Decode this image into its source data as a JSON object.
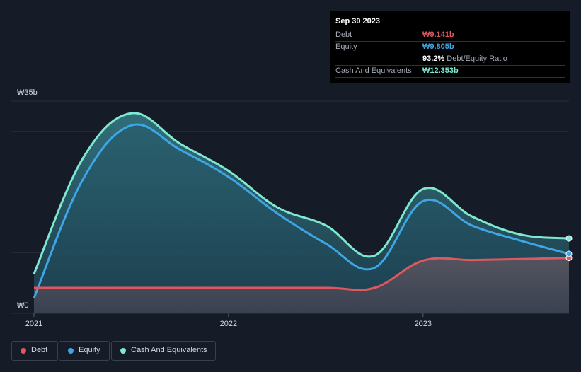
{
  "chart_data": {
    "type": "area",
    "title": "",
    "currency_prefix": "₩",
    "y_unit": "b",
    "ylim": [
      0,
      35
    ],
    "y_tick_labels": [
      {
        "value": 35,
        "label": "₩35b"
      },
      {
        "value": 0,
        "label": "₩0"
      }
    ],
    "gridlines": [
      0,
      10,
      20,
      30,
      35
    ],
    "xlim": [
      2021.0,
      2023.75
    ],
    "x_tick_labels": [
      {
        "value": 2021.0,
        "label": "2021"
      },
      {
        "value": 2022.0,
        "label": "2022"
      },
      {
        "value": 2023.0,
        "label": "2023"
      }
    ],
    "series": [
      {
        "name": "Cash And Equivalents",
        "key": "cash",
        "color": "#7ee8d0",
        "points": [
          [
            2021.0,
            6.5
          ],
          [
            2021.25,
            25.5
          ],
          [
            2021.5,
            33.0
          ],
          [
            2021.75,
            28.0
          ],
          [
            2022.0,
            23.5
          ],
          [
            2022.25,
            17.5
          ],
          [
            2022.5,
            14.5
          ],
          [
            2022.75,
            9.5
          ],
          [
            2023.0,
            20.5
          ],
          [
            2023.25,
            16.0
          ],
          [
            2023.5,
            13.0
          ],
          [
            2023.75,
            12.353
          ]
        ]
      },
      {
        "name": "Equity",
        "key": "equity",
        "color": "#3ea6e6",
        "points": [
          [
            2021.0,
            2.5
          ],
          [
            2021.25,
            22.0
          ],
          [
            2021.5,
            31.0
          ],
          [
            2021.75,
            27.0
          ],
          [
            2022.0,
            22.5
          ],
          [
            2022.25,
            16.5
          ],
          [
            2022.5,
            11.5
          ],
          [
            2022.75,
            7.5
          ],
          [
            2023.0,
            18.5
          ],
          [
            2023.25,
            14.5
          ],
          [
            2023.5,
            12.0
          ],
          [
            2023.75,
            9.805
          ]
        ]
      },
      {
        "name": "Debt",
        "key": "debt",
        "color": "#e0575f",
        "points": [
          [
            2021.0,
            4.2
          ],
          [
            2021.5,
            4.2
          ],
          [
            2022.0,
            4.2
          ],
          [
            2022.5,
            4.2
          ],
          [
            2022.75,
            4.2
          ],
          [
            2023.0,
            8.7
          ],
          [
            2023.25,
            8.8
          ],
          [
            2023.5,
            8.95
          ],
          [
            2023.75,
            9.141
          ]
        ]
      }
    ],
    "tooltip": {
      "date": "Sep 30 2023",
      "debt_label": "Debt",
      "debt_value": "₩9.141b",
      "equity_label": "Equity",
      "equity_value": "₩9.805b",
      "ratio_value": "93.2%",
      "ratio_label": "Debt/Equity Ratio",
      "cash_label": "Cash And Equivalents",
      "cash_value": "₩12.353b"
    },
    "legend": [
      "Debt",
      "Equity",
      "Cash And Equivalents"
    ]
  },
  "colors": {
    "background": "#151b27",
    "debt": "#e0575f",
    "equity": "#3ea6e6",
    "cash": "#7ee8d0",
    "gridline": "#2a303b"
  }
}
